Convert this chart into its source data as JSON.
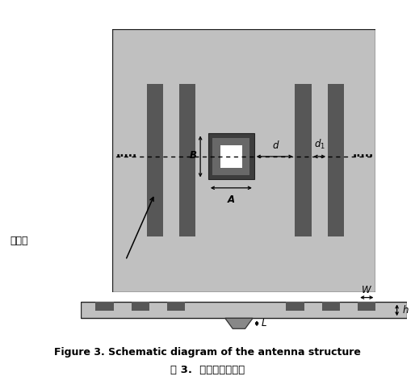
{
  "fig_width": 5.14,
  "fig_height": 4.82,
  "dpi": 100,
  "bg_color": "#ffffff",
  "light_gray": "#c0c0c0",
  "dark_gray": "#575757",
  "mid_gray": "#888888",
  "inner_dark": "#3a3a3a",
  "title_en": "Figure 3. Schematic diagram of the antenna structure",
  "title_cn": "图 3.  天线结构示意图",
  "label_annotation": "波纹槽"
}
